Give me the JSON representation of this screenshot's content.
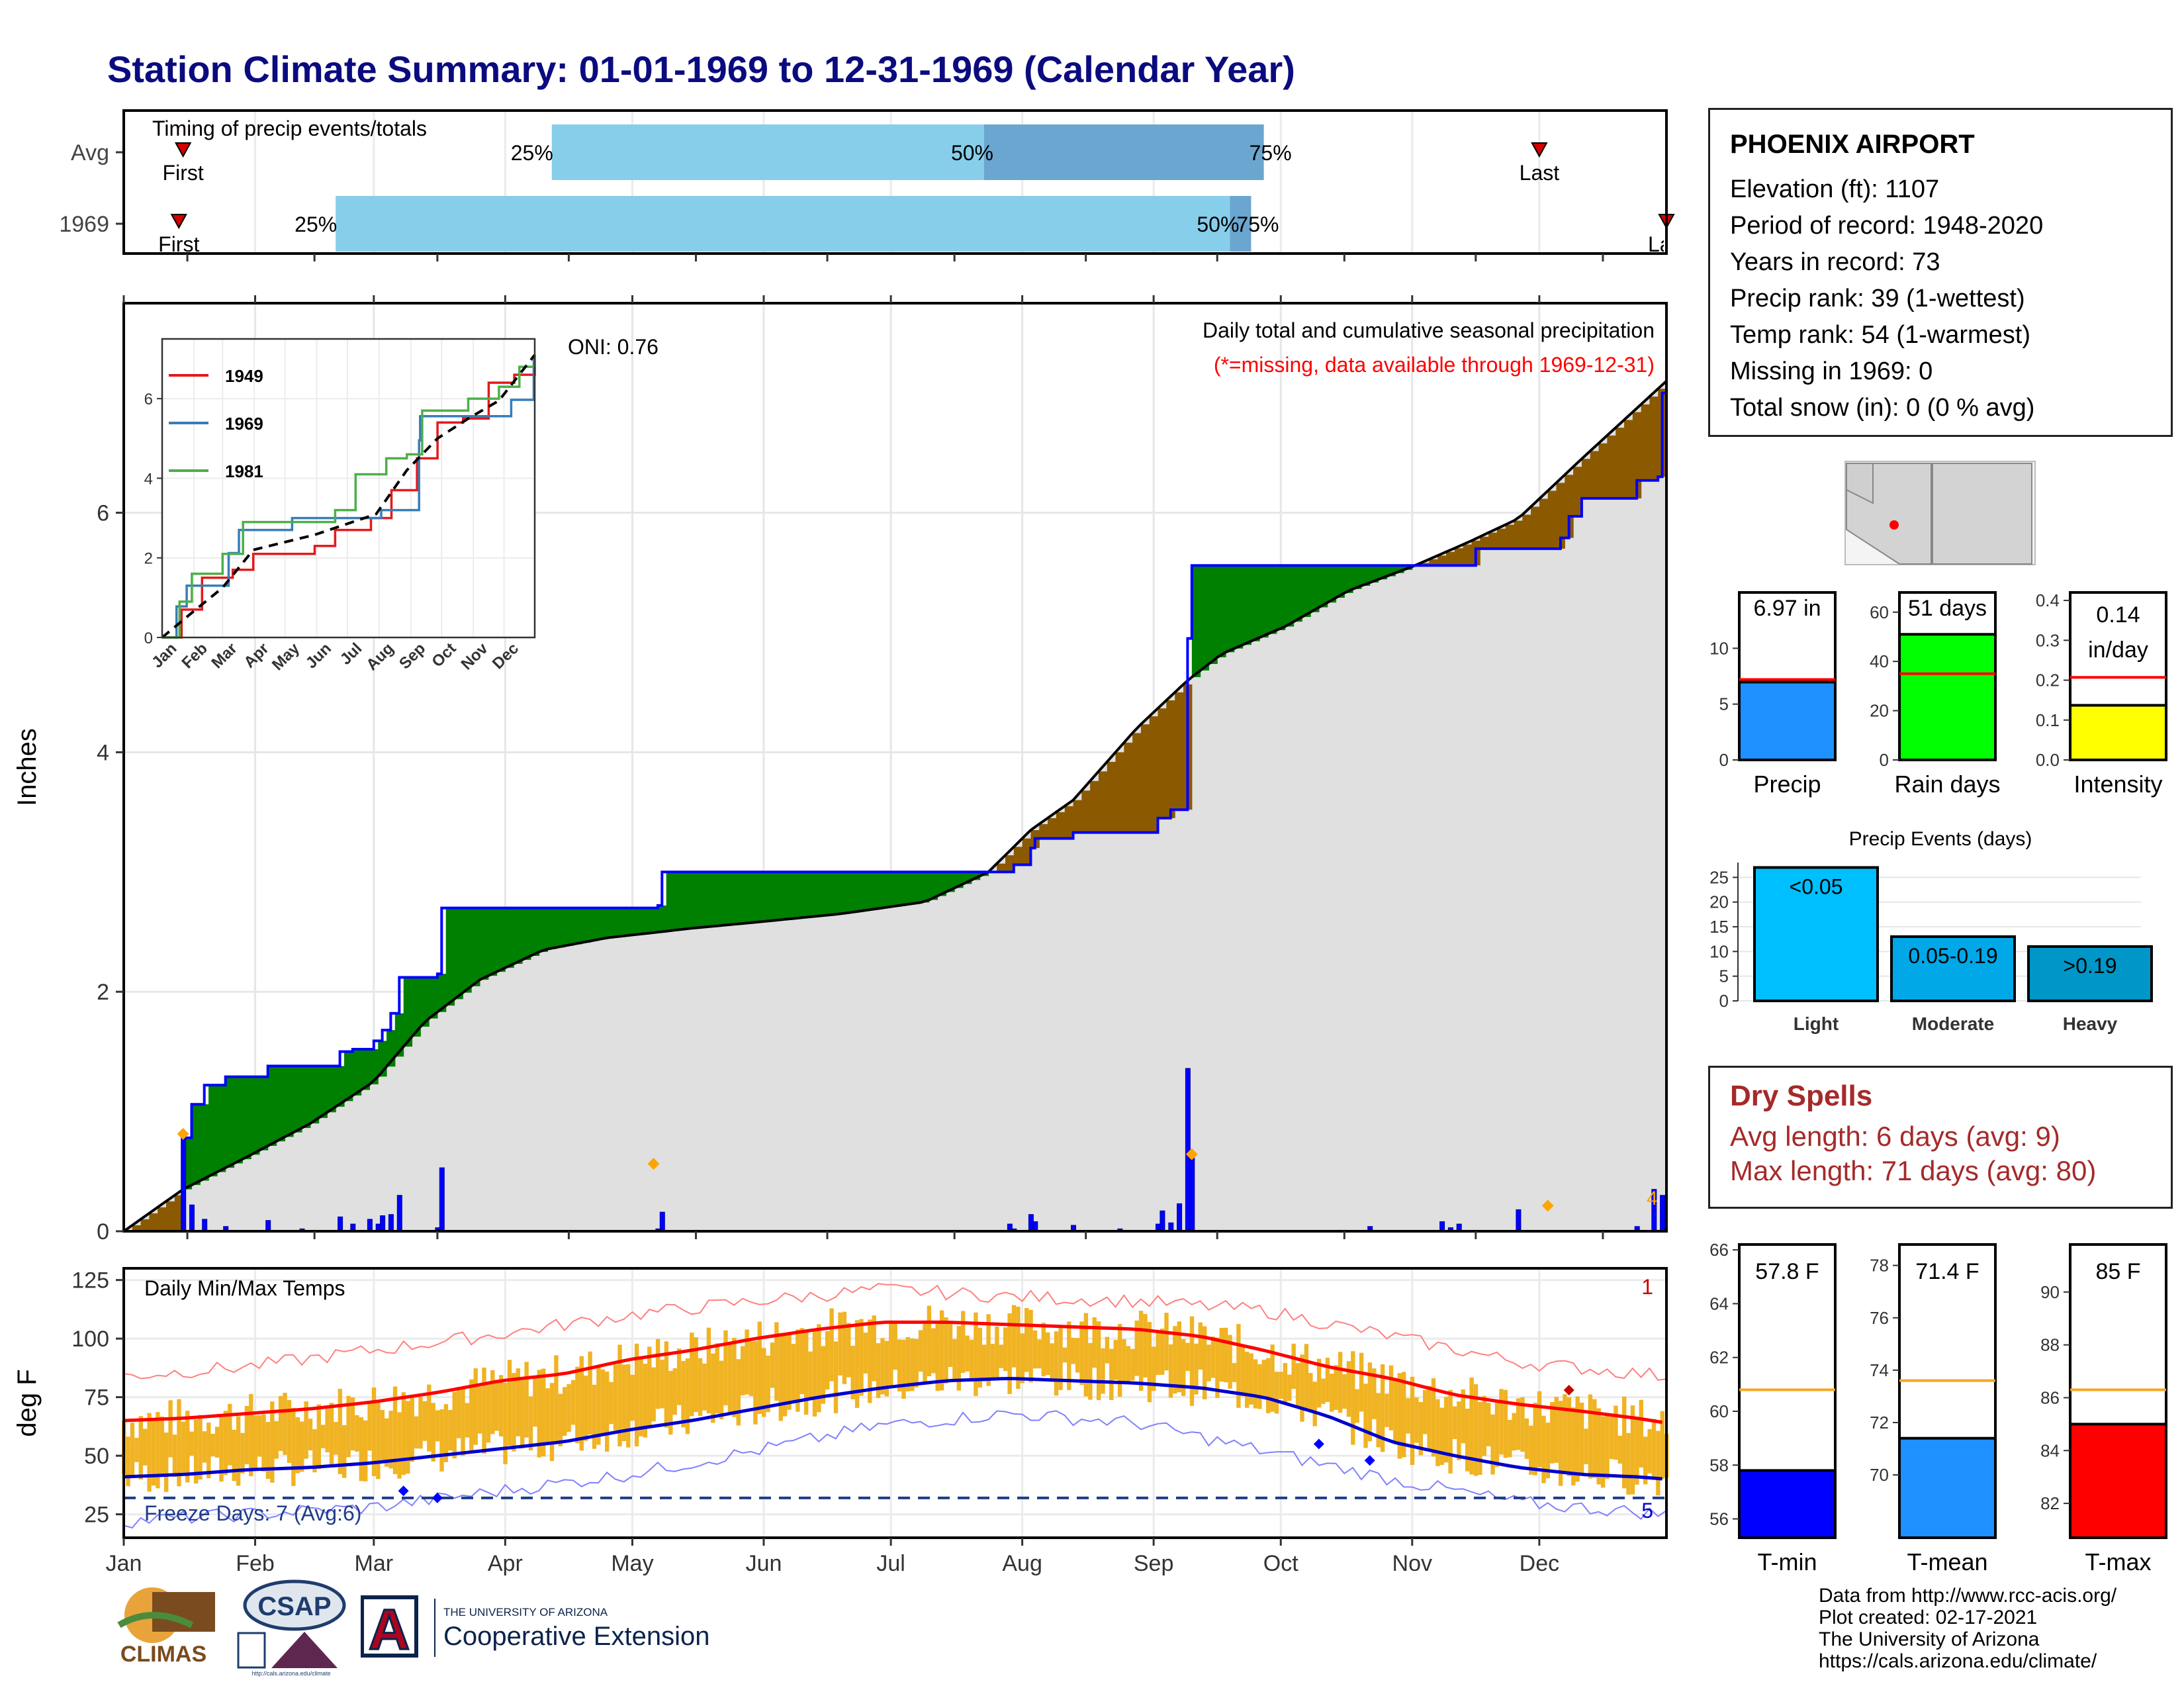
{
  "title": "Station Climate Summary: 01-01-1969 to 12-31-1969 (Calendar Year)",
  "timing_panel": {
    "label": "Timing of precip events/totals",
    "rows": [
      {
        "label": "Avg",
        "first_label": "First",
        "first_day": 15,
        "last_label": "Last",
        "last_day": 335,
        "p25_label": "25%",
        "p50_label": "50%",
        "p75_label": "75%",
        "p25": 102,
        "p50": 204,
        "p75": 270
      },
      {
        "label": "1969",
        "first_label": "First",
        "first_day": 14,
        "last_label": "Last",
        "last_day": 365,
        "p25_label": "25%",
        "p50_label": "50%",
        "p75_label": "75%",
        "p25": 51,
        "p50": 262,
        "p75": 267
      }
    ],
    "colors": {
      "light": "#87ceeb",
      "dark": "#6aa6cf",
      "marker": "#d40000"
    }
  },
  "main_panel": {
    "ylabel": "Inches",
    "annotation_right": "Daily total and cumulative seasonal precipitation",
    "annotation_missing": "(*=missing, data available through 1969-12-31)",
    "oni": "ONI: 0.76",
    "extreme_count_label": "4"
  },
  "inset": {
    "series": [
      {
        "name": "1949",
        "color": "#e41a1c"
      },
      {
        "name": "1969",
        "color": "#377eb8"
      },
      {
        "name": "1981",
        "color": "#4daf4a"
      }
    ]
  },
  "temp_panel": {
    "ylabel": "deg F",
    "label": "Daily Min/Max Temps",
    "freeze_label": "Freeze Days: 7 (Avg:6)",
    "record_high_count": "1",
    "record_low_count": "5",
    "freeze_line": 32
  },
  "station": {
    "name": "PHOENIX AIRPORT",
    "lines": [
      "Elevation (ft): 1107",
      "Period of record: 1948-2020",
      "Years in record: 73",
      "Precip rank: 39 (1-wettest)",
      "Temp rank: 54 (1-warmest)",
      "Missing in 1969: 0",
      "Total snow (in): 0 (0 % avg)"
    ]
  },
  "summary_bars": [
    {
      "label": "Precip",
      "value_label": "6.97 in",
      "value": 6.97,
      "avg": 7.2,
      "ymax": 15,
      "ticks": [
        "0",
        "5",
        "10"
      ],
      "tick_values": [
        0,
        5,
        10
      ],
      "color": "#1e90ff"
    },
    {
      "label": "Rain days",
      "value_label": "51 days",
      "value": 51,
      "avg": 35,
      "ymax": 68,
      "ticks": [
        "0",
        "20",
        "40",
        "60"
      ],
      "tick_values": [
        0,
        20,
        40,
        60
      ],
      "color": "#00ff00"
    },
    {
      "label": "Intensity",
      "value_label": "0.14 in/day",
      "value": 0.137,
      "avg": 0.207,
      "ymax": 0.42,
      "ticks": [
        "0.0",
        "0.1",
        "0.2",
        "0.3",
        "0.4"
      ],
      "tick_values": [
        0,
        0.1,
        0.2,
        0.3,
        0.4
      ],
      "color": "#ffff00"
    }
  ],
  "precip_events": {
    "title": "Precip Events (days)",
    "categories": [
      "Light",
      "Moderate",
      "Heavy"
    ],
    "value_labels": [
      "<0.05",
      "0.05-0.19",
      ">0.19"
    ],
    "values": [
      27,
      13,
      11
    ],
    "ticks": [
      "0",
      "5",
      "10",
      "15",
      "20",
      "25"
    ],
    "colors": [
      "#00bfff",
      "#00a8e8",
      "#0096c7"
    ]
  },
  "dry_spells": {
    "title": "Dry Spells",
    "avg_line": "Avg length: 6 days (avg: 9)",
    "max_line": "Max length: 71 days (avg: 80)"
  },
  "temp_bars": [
    {
      "label": "T-min",
      "value_label": "57.8 F",
      "value": 57.8,
      "avg": 60.8,
      "ymin": 55.3,
      "ymax": 66.2,
      "ticks": [
        "56",
        "58",
        "60",
        "62",
        "64",
        "66"
      ],
      "tick_values": [
        56,
        58,
        60,
        62,
        64,
        66
      ],
      "color": "#0000ff"
    },
    {
      "label": "T-mean",
      "value_label": "71.4 F",
      "value": 71.4,
      "avg": 73.6,
      "ymin": 67.6,
      "ymax": 78.8,
      "ticks": [
        "70",
        "72",
        "74",
        "76",
        "78"
      ],
      "tick_values": [
        70,
        72,
        74,
        76,
        78
      ],
      "color": "#1e90ff"
    },
    {
      "label": "T-max",
      "value_label": "85 F",
      "value": 85,
      "avg": 86.3,
      "ymin": 80.7,
      "ymax": 91.8,
      "ticks": [
        "82",
        "84",
        "86",
        "88",
        "90"
      ],
      "tick_values": [
        82,
        84,
        86,
        88,
        90
      ],
      "color": "#ff0000"
    }
  ],
  "credits": [
    "Data from http://www.rcc-acis.org/",
    "Plot created: 02-17-2021",
    "The University of Arizona",
    "https://cals.arizona.edu/climate/"
  ],
  "logos": {
    "climas": "CLIMAS",
    "csap": "CSAP",
    "csap_url": "http://cals.arizona.edu/climate",
    "ua_top": "THE UNIVERSITY OF ARIZONA",
    "ua_bottom": "Cooperative Extension",
    "ua_letter": "A"
  },
  "chart_data": [
    {
      "type": "area",
      "title": "Daily total and cumulative seasonal precipitation",
      "ylabel": "Inches",
      "ylim": [
        0,
        7.75
      ],
      "yticks": [
        0,
        2,
        4,
        6
      ],
      "x_months": [
        "Jan",
        "Feb",
        "Mar",
        "Apr",
        "May",
        "Jun",
        "Jul",
        "Aug",
        "Sep",
        "Oct",
        "Nov",
        "Dec"
      ],
      "cumulative_1969": [
        [
          1,
          0
        ],
        [
          15,
          0.78
        ],
        [
          17,
          1.06
        ],
        [
          20,
          1.22
        ],
        [
          25,
          1.29
        ],
        [
          35,
          1.38
        ],
        [
          50,
          1.38
        ],
        [
          52,
          1.5
        ],
        [
          55,
          1.52
        ],
        [
          60,
          1.59
        ],
        [
          62,
          1.68
        ],
        [
          64,
          1.82
        ],
        [
          66,
          2.12
        ],
        [
          75,
          2.15
        ],
        [
          76,
          2.7
        ],
        [
          127,
          2.72
        ],
        [
          128,
          3.0
        ],
        [
          210,
          3.0
        ],
        [
          211,
          3.06
        ],
        [
          215,
          3.2
        ],
        [
          216,
          3.28
        ],
        [
          225,
          3.33
        ],
        [
          245,
          3.45
        ],
        [
          248,
          3.52
        ],
        [
          252,
          4.95
        ],
        [
          253,
          5.56
        ],
        [
          312,
          5.56
        ],
        [
          320,
          5.7
        ],
        [
          340,
          5.79
        ],
        [
          342,
          5.97
        ],
        [
          345,
          6.12
        ],
        [
          358,
          6.27
        ],
        [
          363,
          6.3
        ],
        [
          364,
          7.0
        ]
      ],
      "average_cumulative": [
        [
          1,
          0
        ],
        [
          15,
          0.35
        ],
        [
          30,
          0.62
        ],
        [
          45,
          0.9
        ],
        [
          60,
          1.25
        ],
        [
          72,
          1.75
        ],
        [
          85,
          2.1
        ],
        [
          100,
          2.35
        ],
        [
          115,
          2.45
        ],
        [
          135,
          2.53
        ],
        [
          150,
          2.58
        ],
        [
          170,
          2.65
        ],
        [
          190,
          2.75
        ],
        [
          205,
          3.0
        ],
        [
          215,
          3.35
        ],
        [
          225,
          3.6
        ],
        [
          240,
          4.2
        ],
        [
          252,
          4.6
        ],
        [
          260,
          4.82
        ],
        [
          275,
          5.05
        ],
        [
          290,
          5.35
        ],
        [
          305,
          5.55
        ],
        [
          318,
          5.75
        ],
        [
          330,
          5.95
        ],
        [
          345,
          6.45
        ],
        [
          365,
          7.1
        ]
      ],
      "daily_precip": [
        [
          15,
          0.78
        ],
        [
          17,
          0.22
        ],
        [
          20,
          0.1
        ],
        [
          25,
          0.04
        ],
        [
          35,
          0.09
        ],
        [
          43,
          0.02
        ],
        [
          52,
          0.12
        ],
        [
          55,
          0.06
        ],
        [
          59,
          0.1
        ],
        [
          61,
          0.06
        ],
        [
          62,
          0.13
        ],
        [
          64,
          0.14
        ],
        [
          66,
          0.3
        ],
        [
          75,
          0.03
        ],
        [
          76,
          0.53
        ],
        [
          127,
          0.02
        ],
        [
          128,
          0.16
        ],
        [
          210,
          0.06
        ],
        [
          211,
          0.02
        ],
        [
          215,
          0.14
        ],
        [
          216,
          0.08
        ],
        [
          225,
          0.05
        ],
        [
          236,
          0.02
        ],
        [
          245,
          0.06
        ],
        [
          248,
          0.07
        ],
        [
          252,
          1.36
        ],
        [
          253,
          0.61
        ],
        [
          250,
          0.23
        ],
        [
          246,
          0.17
        ],
        [
          295,
          0.04
        ],
        [
          312,
          0.08
        ],
        [
          314,
          0.03
        ],
        [
          316,
          0.06
        ],
        [
          330,
          0.18
        ],
        [
          358,
          0.04
        ],
        [
          362,
          0.35
        ],
        [
          364,
          0.3
        ]
      ],
      "record_days": [
        15,
        126,
        253,
        337
      ],
      "series_colors": {
        "above": "#008000",
        "below": "#8b5a00",
        "background": "#e0e0e0",
        "line": "#0000ff"
      }
    },
    {
      "type": "line",
      "title": "",
      "ylim": [
        0,
        7.5
      ],
      "yticks": [
        0,
        2,
        4,
        6
      ],
      "x_months": [
        "Jan",
        "Feb",
        "Mar",
        "Apr",
        "May",
        "Jun",
        "Jul",
        "Aug",
        "Sep",
        "Oct",
        "Nov",
        "Dec"
      ],
      "series": [
        {
          "name": "1949",
          "values": [
            [
              1,
              0
            ],
            [
              20,
              0.7
            ],
            [
              40,
              1.5
            ],
            [
              70,
              1.7
            ],
            [
              90,
              2.1
            ],
            [
              150,
              2.3
            ],
            [
              170,
              2.7
            ],
            [
              205,
              3.0
            ],
            [
              225,
              3.7
            ],
            [
              250,
              4.5
            ],
            [
              270,
              5.4
            ],
            [
              295,
              5.5
            ],
            [
              320,
              6.4
            ],
            [
              345,
              6.6
            ],
            [
              365,
              6.8
            ]
          ]
        },
        {
          "name": "1969",
          "values": [
            [
              1,
              0
            ],
            [
              15,
              0.78
            ],
            [
              25,
              1.3
            ],
            [
              66,
              2.12
            ],
            [
              76,
              2.7
            ],
            [
              128,
              3.0
            ],
            [
              215,
              3.2
            ],
            [
              252,
              4.95
            ],
            [
              253,
              5.56
            ],
            [
              312,
              5.56
            ],
            [
              342,
              5.97
            ],
            [
              364,
              7.0
            ]
          ]
        },
        {
          "name": "1981",
          "values": [
            [
              1,
              0
            ],
            [
              18,
              0.9
            ],
            [
              30,
              1.6
            ],
            [
              60,
              2.1
            ],
            [
              80,
              2.9
            ],
            [
              170,
              3.2
            ],
            [
              190,
              4.1
            ],
            [
              220,
              4.5
            ],
            [
              240,
              4.6
            ],
            [
              255,
              5.7
            ],
            [
              300,
              6.0
            ],
            [
              330,
              6.3
            ],
            [
              350,
              6.8
            ],
            [
              365,
              7.1
            ]
          ]
        },
        {
          "name": "average",
          "values": [
            [
              1,
              0
            ],
            [
              30,
              0.62
            ],
            [
              60,
              1.25
            ],
            [
              90,
              2.2
            ],
            [
              150,
              2.58
            ],
            [
              210,
              3.1
            ],
            [
              240,
              4.2
            ],
            [
              270,
              5.0
            ],
            [
              300,
              5.5
            ],
            [
              330,
              5.95
            ],
            [
              365,
              7.1
            ]
          ]
        }
      ]
    },
    {
      "type": "bar",
      "title": "Daily Min/Max Temps",
      "ylabel": "deg F",
      "ylim": [
        15,
        130
      ],
      "yticks": [
        25,
        50,
        75,
        100,
        125
      ],
      "x_months": [
        "Jan",
        "Feb",
        "Mar",
        "Apr",
        "May",
        "Jun",
        "Jul",
        "Aug",
        "Sep",
        "Oct",
        "Nov",
        "Dec"
      ],
      "normal_max": [
        [
          1,
          65
        ],
        [
          15,
          66
        ],
        [
          30,
          68
        ],
        [
          45,
          70
        ],
        [
          60,
          73
        ],
        [
          75,
          77
        ],
        [
          90,
          82
        ],
        [
          105,
          85
        ],
        [
          120,
          91
        ],
        [
          135,
          95
        ],
        [
          150,
          100
        ],
        [
          165,
          104
        ],
        [
          180,
          107
        ],
        [
          195,
          107
        ],
        [
          210,
          106
        ],
        [
          225,
          105
        ],
        [
          240,
          104
        ],
        [
          255,
          101
        ],
        [
          270,
          95
        ],
        [
          285,
          88
        ],
        [
          300,
          83
        ],
        [
          315,
          76
        ],
        [
          330,
          72
        ],
        [
          345,
          69
        ],
        [
          358,
          66
        ],
        [
          365,
          64
        ]
      ],
      "normal_min": [
        [
          1,
          41
        ],
        [
          15,
          42
        ],
        [
          30,
          44
        ],
        [
          45,
          45
        ],
        [
          60,
          47
        ],
        [
          75,
          50
        ],
        [
          90,
          53
        ],
        [
          105,
          56
        ],
        [
          120,
          61
        ],
        [
          135,
          65
        ],
        [
          150,
          70
        ],
        [
          165,
          75
        ],
        [
          180,
          79
        ],
        [
          195,
          82
        ],
        [
          210,
          83
        ],
        [
          225,
          82
        ],
        [
          240,
          81
        ],
        [
          255,
          79
        ],
        [
          270,
          75
        ],
        [
          285,
          67
        ],
        [
          300,
          56
        ],
        [
          315,
          50
        ],
        [
          330,
          45
        ],
        [
          345,
          42
        ],
        [
          358,
          41
        ],
        [
          365,
          40
        ]
      ],
      "record_max": [
        [
          1,
          84
        ],
        [
          30,
          88
        ],
        [
          60,
          95
        ],
        [
          90,
          102
        ],
        [
          120,
          110
        ],
        [
          150,
          116
        ],
        [
          180,
          121
        ],
        [
          210,
          118
        ],
        [
          240,
          116
        ],
        [
          270,
          112
        ],
        [
          300,
          101
        ],
        [
          330,
          90
        ],
        [
          365,
          84
        ]
      ],
      "record_min": [
        [
          1,
          22
        ],
        [
          30,
          25
        ],
        [
          60,
          28
        ],
        [
          90,
          35
        ],
        [
          120,
          42
        ],
        [
          150,
          52
        ],
        [
          180,
          63
        ],
        [
          210,
          68
        ],
        [
          240,
          64
        ],
        [
          270,
          52
        ],
        [
          300,
          40
        ],
        [
          330,
          30
        ],
        [
          365,
          25
        ]
      ],
      "marker_points": [
        [
          67,
          35,
          "blue"
        ],
        [
          75,
          32,
          "blue"
        ],
        [
          283,
          55,
          "blue"
        ],
        [
          295,
          48,
          "blue"
        ],
        [
          342,
          78,
          "red"
        ]
      ]
    }
  ]
}
